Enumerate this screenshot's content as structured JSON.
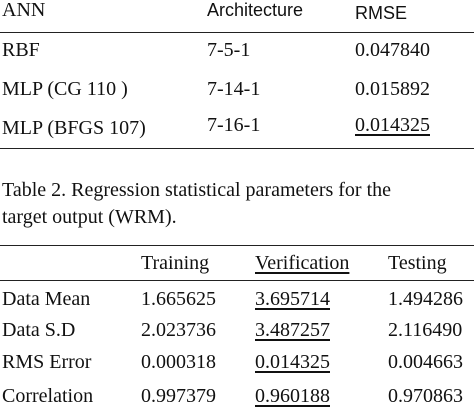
{
  "table1": {
    "header": [
      "ANN",
      "Architecture",
      "RMSE"
    ],
    "rows": [
      [
        "RBF",
        "7-5-1",
        "0.047840"
      ],
      [
        "MLP (CG 110 )",
        "7-14-1",
        "0.015892"
      ],
      [
        "MLP (BFGS 107)",
        "7-16-1",
        "0.014325"
      ]
    ]
  },
  "caption": [
    "Table 2. Regression statistical parameters for the",
    "target output (WRM)."
  ],
  "table2": {
    "header": [
      "",
      "Training",
      "Verification",
      "Testing"
    ],
    "rows": [
      [
        "Data Mean",
        "1.665625",
        "3.695714",
        "1.494286"
      ],
      [
        "Data S.D",
        "2.023736",
        "3.487257",
        "2.116490"
      ],
      [
        "RMS Error",
        "0.000318",
        "0.014325",
        "0.004663"
      ],
      [
        "Correlation",
        "0.997379",
        "0.960188",
        "0.970863"
      ]
    ]
  }
}
